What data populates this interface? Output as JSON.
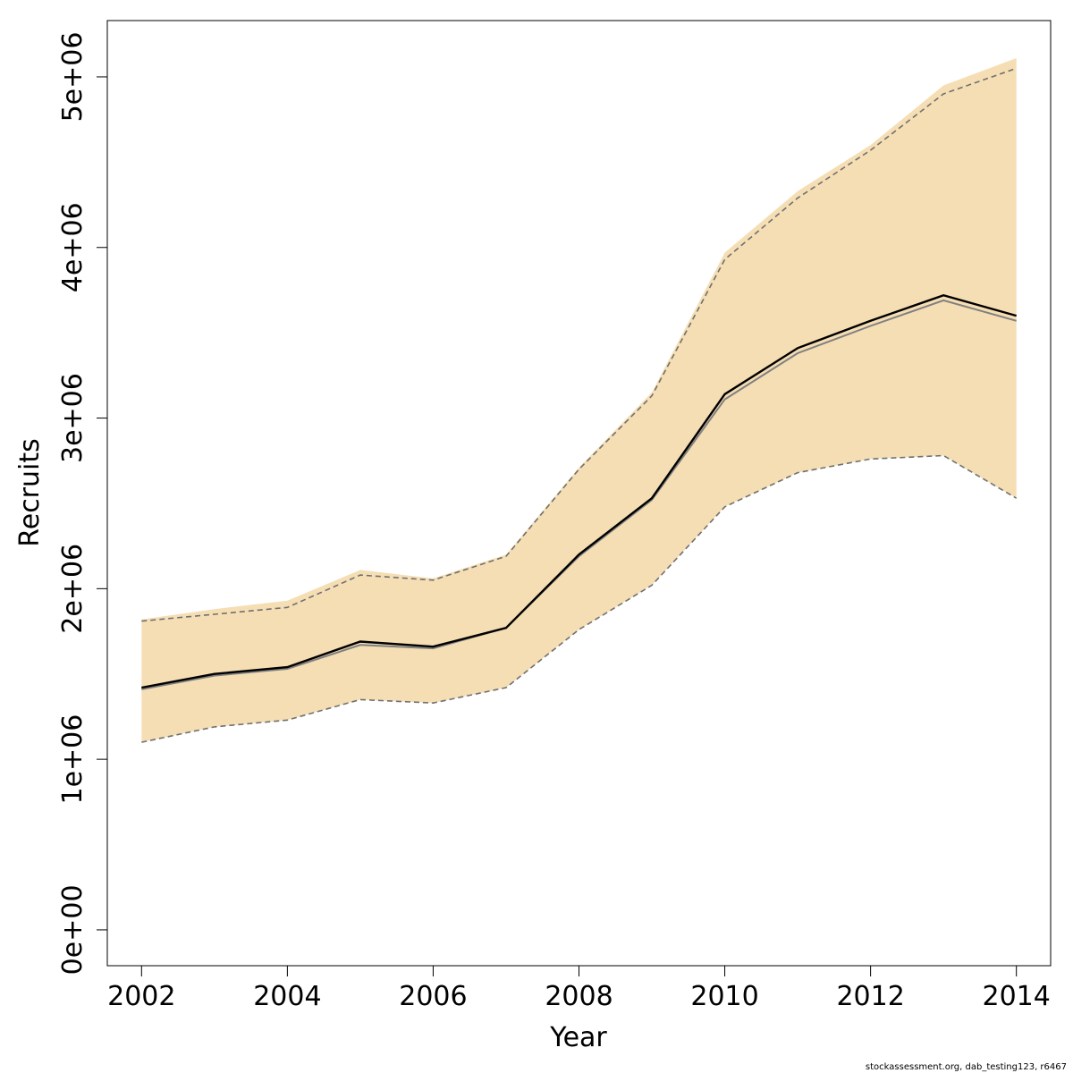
{
  "footer": "stockassessment.org, dab_testing123, r6467",
  "chart_data": {
    "type": "line",
    "title": "",
    "xlabel": "Year",
    "ylabel": "Recruits",
    "xlim": [
      2001.53,
      2014.47
    ],
    "ylim": [
      -210000,
      5330000
    ],
    "x_ticks": [
      2002,
      2004,
      2006,
      2008,
      2010,
      2012,
      2014
    ],
    "x_tick_labels": [
      "2002",
      "2004",
      "2006",
      "2008",
      "2010",
      "2012",
      "2014"
    ],
    "y_ticks": [
      0,
      1000000,
      2000000,
      3000000,
      4000000,
      5000000
    ],
    "y_tick_labels": [
      "0e+00",
      "1e+06",
      "2e+06",
      "3e+06",
      "4e+06",
      "5e+06"
    ],
    "grid": false,
    "legend": "none",
    "colors": {
      "band": "#f5deb3",
      "estimate": "#000000",
      "baseline": "#808080",
      "ci": "#707070"
    },
    "x": [
      2002,
      2003,
      2004,
      2005,
      2006,
      2007,
      2008,
      2009,
      2010,
      2011,
      2012,
      2013,
      2014
    ],
    "series": [
      {
        "role": "band_upper",
        "values": [
          1820000,
          1880000,
          1930000,
          2110000,
          2060000,
          2200000,
          2710000,
          3150000,
          3970000,
          4330000,
          4600000,
          4950000,
          5110000
        ]
      },
      {
        "role": "band_lower",
        "values": [
          1100000,
          1190000,
          1230000,
          1350000,
          1330000,
          1420000,
          1760000,
          2020000,
          2480000,
          2680000,
          2760000,
          2780000,
          2530000
        ]
      },
      {
        "role": "ci_upper",
        "values": [
          1810000,
          1850000,
          1890000,
          2080000,
          2050000,
          2190000,
          2700000,
          3130000,
          3930000,
          4290000,
          4570000,
          4900000,
          5050000
        ]
      },
      {
        "role": "ci_lower",
        "values": [
          1100000,
          1190000,
          1230000,
          1350000,
          1330000,
          1420000,
          1760000,
          2020000,
          2480000,
          2680000,
          2760000,
          2780000,
          2530000
        ]
      },
      {
        "role": "baseline",
        "values": [
          1410000,
          1490000,
          1530000,
          1670000,
          1650000,
          1770000,
          2190000,
          2520000,
          3110000,
          3380000,
          3540000,
          3690000,
          3570000
        ]
      },
      {
        "role": "estimate",
        "values": [
          1420000,
          1500000,
          1540000,
          1690000,
          1660000,
          1770000,
          2200000,
          2530000,
          3140000,
          3410000,
          3570000,
          3720000,
          3600000
        ]
      }
    ]
  }
}
